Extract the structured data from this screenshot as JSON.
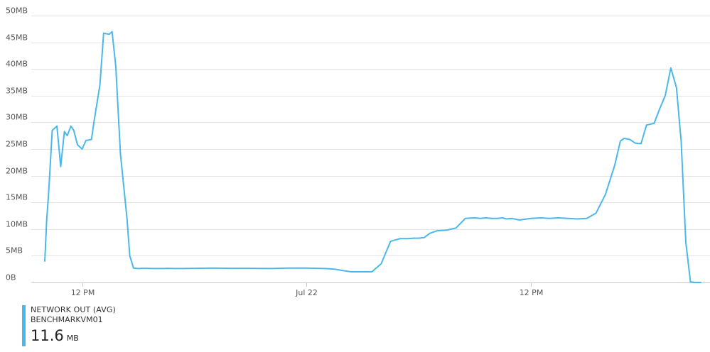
{
  "colors": {
    "series": "#4ab8ea",
    "grid": "#e4e4e4",
    "axis_text": "#555555"
  },
  "legend": {
    "title": "NETWORK OUT (AVG)",
    "resource": "BENCHMARKVM01",
    "value": "11.6",
    "unit": "MB"
  },
  "chart_data": {
    "type": "line",
    "title": "",
    "xlabel": "",
    "ylabel": "",
    "x_axis": {
      "ticks": [
        {
          "label": "12 PM",
          "t": 2
        },
        {
          "label": "Jul 22",
          "t": 14
        },
        {
          "label": "12 PM",
          "t": 26
        }
      ],
      "range_hours": [
        0,
        35.1
      ],
      "note_units": "hours"
    },
    "y_axis": {
      "unit": "MB",
      "ylim": [
        0,
        50
      ],
      "ticks": [
        0,
        5,
        10,
        15,
        20,
        25,
        30,
        35,
        40,
        45,
        50
      ],
      "tick_labels": [
        "0B",
        "5MB",
        "10MB",
        "15MB",
        "20MB",
        "25MB",
        "30MB",
        "35MB",
        "40MB",
        "45MB",
        "50MB"
      ]
    },
    "grid": true,
    "legend_position": "bottom-left",
    "series": [
      {
        "name": "NETWORK OUT (AVG)",
        "x": [
          0.0,
          0.1,
          0.2,
          0.4,
          0.65,
          0.85,
          1.05,
          1.2,
          1.4,
          1.55,
          1.75,
          2.0,
          2.2,
          2.5,
          2.65,
          2.95,
          3.15,
          3.45,
          3.6,
          3.8,
          4.05,
          4.4,
          4.55,
          4.75,
          5.0,
          5.2,
          5.45,
          5.8,
          6.1,
          6.35,
          6.6,
          6.9,
          7.3,
          8.0,
          9.0,
          10.0,
          11.0,
          12.0,
          13.0,
          14.0,
          15.0,
          15.5,
          16.0,
          16.4,
          16.8,
          17.5,
          18.0,
          18.5,
          19.0,
          19.4,
          19.8,
          20.0,
          20.3,
          20.6,
          21.0,
          21.5,
          22.0,
          22.5,
          23.0,
          23.3,
          23.6,
          23.9,
          24.2,
          24.5,
          24.7,
          25.0,
          25.4,
          26.0,
          26.6,
          27.0,
          27.5,
          28.0,
          28.5,
          29.0,
          29.5,
          30.0,
          30.5,
          30.8,
          31.0,
          31.3,
          31.6,
          31.9,
          32.2,
          32.6,
          32.9,
          33.2,
          33.5,
          33.8,
          34.05,
          34.3,
          34.55,
          34.8,
          35.1
        ],
        "values": [
          4,
          11.5,
          16.5,
          28.5,
          29.3,
          21.7,
          28.3,
          27.5,
          29.3,
          28.5,
          25.8,
          25,
          26.6,
          26.8,
          30.5,
          37,
          46.7,
          46.5,
          47,
          40.5,
          24,
          12,
          5,
          2.7,
          2.6,
          2.65,
          2.65,
          2.6,
          2.6,
          2.6,
          2.65,
          2.6,
          2.6,
          2.65,
          2.7,
          2.65,
          2.65,
          2.6,
          2.7,
          2.7,
          2.6,
          2.5,
          2.2,
          2.0,
          2.0,
          2.0,
          3.5,
          7.7,
          8.2,
          8.2,
          8.3,
          8.3,
          8.4,
          9.2,
          9.7,
          9.8,
          10.2,
          12.0,
          12.1,
          12.0,
          12.1,
          12.0,
          12.0,
          12.1,
          11.9,
          12.0,
          11.7,
          12.0,
          12.1,
          12.0,
          12.1,
          12.0,
          11.9,
          12.0,
          13.0,
          16.5,
          22.0,
          26.5,
          27.0,
          26.8,
          26.1,
          26.0,
          29.5,
          29.8,
          32.5,
          35.0,
          40.2,
          36.5,
          26.5,
          7.5,
          0.1,
          0.0,
          0.0
        ]
      }
    ]
  }
}
